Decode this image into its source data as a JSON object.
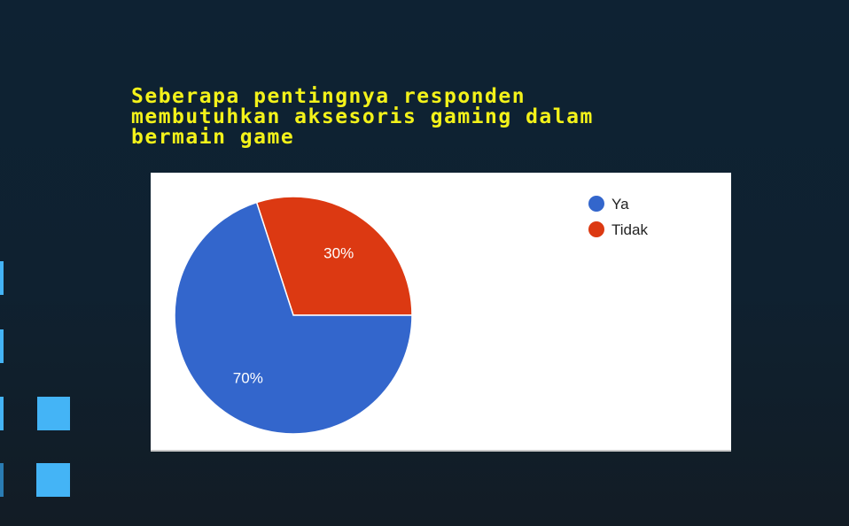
{
  "slide": {
    "title": "Seberapa pentingnya responden\nmembutuhkan aksesoris gaming dalam\nbermain game"
  },
  "chart_data": {
    "type": "pie",
    "title": "",
    "slices": [
      {
        "label": "Ya",
        "value": 70,
        "value_label": "70%",
        "color": "#3366cc"
      },
      {
        "label": "Tidak",
        "value": 30,
        "value_label": "30%",
        "color": "#dc3912"
      }
    ],
    "legend_position": "right",
    "slice_text": "percentage",
    "start_angle_deg": 0
  },
  "colors": {
    "background": "#0f2231",
    "title": "#f3f21a",
    "decor": "#44b4f6"
  }
}
